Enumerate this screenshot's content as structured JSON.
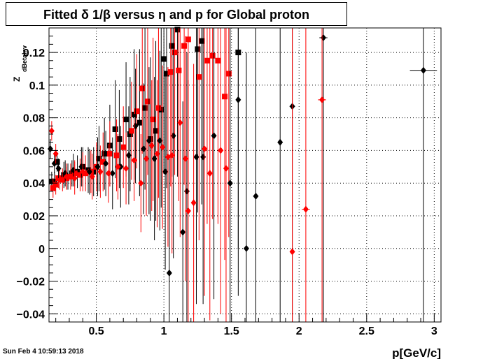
{
  "timestamp": "Sun Feb  4 10:59:13 2018",
  "chart_data": {
    "type": "scatter",
    "title": "Fitted δ 1/β versus η and p for Global proton",
    "xlabel": "p[GeV/c]",
    "ylabel": "Z",
    "ylabel_sub": "dBetaInv",
    "xlim": [
      0.15,
      3.05
    ],
    "ylim": [
      -0.045,
      0.135
    ],
    "x_ticks": [
      0.5,
      1,
      1.5,
      2,
      2.5,
      3
    ],
    "x_tick_labels": [
      "0.5",
      "1",
      "1.5",
      "2",
      "2.5",
      "3"
    ],
    "y_ticks": [
      -0.04,
      -0.02,
      0,
      0.02,
      0.04,
      0.06,
      0.08,
      0.1,
      0.12
    ],
    "y_tick_labels": [
      "−0.04",
      "−0.02",
      "0",
      "0.02",
      "0.04",
      "0.06",
      "0.08",
      "0.1",
      "0.12"
    ],
    "grid": true,
    "legend": "none",
    "series": [
      {
        "marker": "square",
        "color": "#000000",
        "points": [
          [
            0.17,
            0.041,
            0.006,
            0.005
          ],
          [
            0.19,
            0.041,
            0.006,
            0.005
          ],
          [
            0.21,
            0.053,
            0.006,
            0.005
          ],
          [
            0.23,
            0.043,
            0.006,
            0.005
          ],
          [
            0.26,
            0.045,
            0.008,
            0.005
          ],
          [
            0.29,
            0.044,
            0.008,
            0.005
          ],
          [
            0.32,
            0.046,
            0.008,
            0.005
          ],
          [
            0.36,
            0.047,
            0.01,
            0.005
          ],
          [
            0.4,
            0.05,
            0.012,
            0.005
          ],
          [
            0.44,
            0.048,
            0.014,
            0.005
          ],
          [
            0.48,
            0.047,
            0.015,
            0.005
          ],
          [
            0.52,
            0.055,
            0.02,
            0.005
          ],
          [
            0.56,
            0.058,
            0.022,
            0.005
          ],
          [
            0.6,
            0.063,
            0.025,
            0.005
          ],
          [
            0.64,
            0.073,
            0.03,
            0.005
          ],
          [
            0.67,
            0.067,
            0.03,
            0.005
          ],
          [
            0.72,
            0.079,
            0.035,
            0.005
          ],
          [
            0.75,
            0.07,
            0.035,
            0.005
          ],
          [
            0.78,
            0.082,
            0.04,
            0.005
          ],
          [
            0.82,
            0.077,
            0.045,
            0.005
          ],
          [
            0.86,
            0.086,
            0.05,
            0.005
          ],
          [
            0.9,
            0.067,
            0.05,
            0.005
          ],
          [
            0.94,
            0.072,
            0.055,
            0.005
          ],
          [
            0.98,
            0.085,
            0.06,
            0.005
          ],
          [
            1.0,
            0.116,
            0.07,
            0.005
          ],
          [
            1.02,
            0.107,
            0.07,
            0.005
          ],
          [
            1.06,
            0.124,
            0.08,
            0.005
          ],
          [
            1.1,
            0.134,
            0.09,
            0.005
          ],
          [
            1.25,
            0.122,
            0.1,
            0.005
          ],
          [
            1.28,
            0.127,
            0.1,
            0.005
          ],
          [
            1.55,
            0.12,
            0.12,
            0.005
          ]
        ]
      },
      {
        "marker": "square",
        "color": "#ff0000",
        "points": [
          [
            0.18,
            0.037,
            0.006,
            0.005
          ],
          [
            0.2,
            0.039,
            0.006,
            0.005
          ],
          [
            0.22,
            0.043,
            0.006,
            0.005
          ],
          [
            0.25,
            0.042,
            0.007,
            0.005
          ],
          [
            0.28,
            0.043,
            0.007,
            0.005
          ],
          [
            0.31,
            0.044,
            0.008,
            0.005
          ],
          [
            0.34,
            0.046,
            0.008,
            0.005
          ],
          [
            0.38,
            0.045,
            0.01,
            0.005
          ],
          [
            0.42,
            0.046,
            0.011,
            0.005
          ],
          [
            0.46,
            0.047,
            0.013,
            0.005
          ],
          [
            0.5,
            0.05,
            0.015,
            0.005
          ],
          [
            0.55,
            0.053,
            0.018,
            0.005
          ],
          [
            0.6,
            0.058,
            0.02,
            0.005
          ],
          [
            0.65,
            0.057,
            0.022,
            0.005
          ],
          [
            0.7,
            0.062,
            0.025,
            0.005
          ],
          [
            0.76,
            0.072,
            0.03,
            0.005
          ],
          [
            0.8,
            0.084,
            0.035,
            0.005
          ],
          [
            0.84,
            0.098,
            0.04,
            0.005
          ],
          [
            0.88,
            0.09,
            0.045,
            0.005
          ],
          [
            0.92,
            0.079,
            0.05,
            0.005
          ],
          [
            0.96,
            0.086,
            0.055,
            0.005
          ],
          [
            1.05,
            0.108,
            0.07,
            0.005
          ],
          [
            1.08,
            0.12,
            0.075,
            0.005
          ],
          [
            1.11,
            0.109,
            0.08,
            0.005
          ],
          [
            1.15,
            0.124,
            0.085,
            0.005
          ],
          [
            1.18,
            0.128,
            0.09,
            0.005
          ],
          [
            1.26,
            0.105,
            0.1,
            0.005
          ],
          [
            1.32,
            0.115,
            0.1,
            0.005
          ],
          [
            1.36,
            0.118,
            0.1,
            0.005
          ],
          [
            1.4,
            0.115,
            0.1,
            0.005
          ],
          [
            1.45,
            0.093,
            0.1,
            0.005
          ],
          [
            1.48,
            0.107,
            0.1,
            0.005
          ]
        ]
      },
      {
        "marker": "diamond",
        "color": "#000000",
        "points": [
          [
            0.16,
            0.061,
            0.006,
            0.005
          ],
          [
            0.19,
            0.052,
            0.006,
            0.005
          ],
          [
            0.22,
            0.049,
            0.006,
            0.005
          ],
          [
            0.27,
            0.046,
            0.008,
            0.005
          ],
          [
            0.33,
            0.048,
            0.01,
            0.005
          ],
          [
            0.39,
            0.05,
            0.012,
            0.005
          ],
          [
            0.45,
            0.047,
            0.014,
            0.005
          ],
          [
            0.51,
            0.05,
            0.018,
            0.005
          ],
          [
            0.57,
            0.052,
            0.02,
            0.005
          ],
          [
            0.62,
            0.046,
            0.022,
            0.005
          ],
          [
            0.68,
            0.05,
            0.025,
            0.005
          ],
          [
            0.74,
            0.057,
            0.03,
            0.005
          ],
          [
            0.79,
            0.075,
            0.035,
            0.005
          ],
          [
            0.85,
            0.061,
            0.04,
            0.005
          ],
          [
            0.89,
            0.066,
            0.045,
            0.005
          ],
          [
            0.93,
            0.055,
            0.05,
            0.005
          ],
          [
            0.97,
            0.066,
            0.055,
            0.005
          ],
          [
            1.01,
            0.047,
            0.06,
            0.005
          ],
          [
            1.04,
            -0.015,
            0.07,
            0.005
          ],
          [
            1.07,
            0.069,
            0.075,
            0.005
          ],
          [
            1.14,
            0.01,
            0.08,
            0.005
          ],
          [
            1.17,
            0.035,
            0.085,
            0.005
          ],
          [
            1.24,
            0.056,
            0.09,
            0.005
          ],
          [
            1.29,
            0.056,
            0.09,
            0.005
          ],
          [
            1.37,
            0.069,
            0.1,
            0.005
          ],
          [
            1.49,
            0.04,
            0.1,
            0.005
          ],
          [
            1.55,
            0.091,
            0.12,
            0.005
          ],
          [
            1.61,
            0.0,
            0.12,
            0.01
          ],
          [
            1.68,
            0.032,
            0.12,
            0.01
          ],
          [
            1.86,
            0.065,
            0.15,
            0.01
          ],
          [
            1.95,
            0.087,
            0.15,
            0.02
          ],
          [
            2.18,
            0.129,
            0.18,
            0.03
          ],
          [
            2.92,
            0.109,
            0.2,
            0.1
          ]
        ]
      },
      {
        "marker": "diamond",
        "color": "#ff0000",
        "points": [
          [
            0.17,
            0.072,
            0.006,
            0.005
          ],
          [
            0.2,
            0.058,
            0.006,
            0.005
          ],
          [
            0.23,
            0.042,
            0.006,
            0.005
          ],
          [
            0.28,
            0.044,
            0.008,
            0.005
          ],
          [
            0.34,
            0.043,
            0.01,
            0.005
          ],
          [
            0.4,
            0.047,
            0.012,
            0.005
          ],
          [
            0.47,
            0.044,
            0.014,
            0.005
          ],
          [
            0.53,
            0.047,
            0.016,
            0.005
          ],
          [
            0.59,
            0.046,
            0.018,
            0.005
          ],
          [
            0.66,
            0.05,
            0.02,
            0.005
          ],
          [
            0.72,
            0.049,
            0.022,
            0.005
          ],
          [
            0.78,
            0.054,
            0.025,
            0.005
          ],
          [
            0.83,
            0.04,
            0.03,
            0.005
          ],
          [
            0.87,
            0.055,
            0.035,
            0.005
          ],
          [
            0.91,
            0.063,
            0.04,
            0.005
          ],
          [
            0.95,
            0.058,
            0.045,
            0.005
          ],
          [
            0.99,
            0.062,
            0.05,
            0.005
          ],
          [
            1.03,
            0.056,
            0.055,
            0.005
          ],
          [
            1.06,
            0.057,
            0.06,
            0.005
          ],
          [
            1.12,
            0.077,
            0.07,
            0.005
          ],
          [
            1.16,
            0.055,
            0.075,
            0.005
          ],
          [
            1.18,
            0.023,
            0.08,
            0.005
          ],
          [
            1.22,
            0.028,
            0.085,
            0.005
          ],
          [
            1.3,
            0.061,
            0.09,
            0.005
          ],
          [
            1.34,
            0.046,
            0.09,
            0.005
          ],
          [
            1.42,
            0.06,
            0.1,
            0.005
          ],
          [
            1.46,
            0.049,
            0.1,
            0.005
          ],
          [
            1.95,
            -0.002,
            0.15,
            0.01
          ],
          [
            2.05,
            0.024,
            0.15,
            0.03
          ],
          [
            2.17,
            0.091,
            0.18,
            0.03
          ]
        ]
      }
    ]
  }
}
